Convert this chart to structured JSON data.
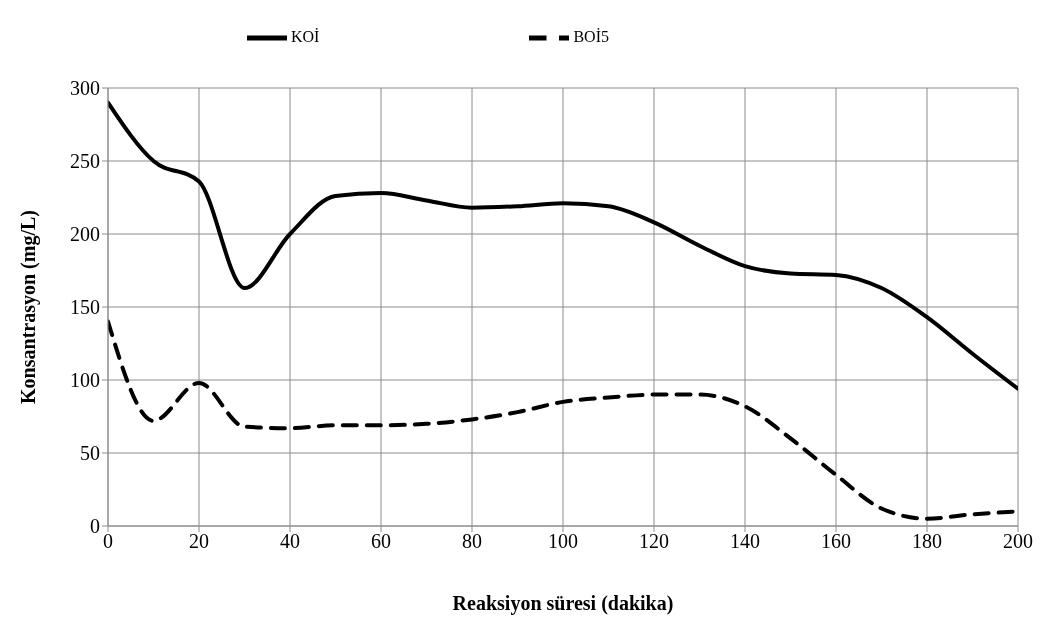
{
  "chart_data": {
    "type": "line",
    "xlabel": "Reaksiyon süresi (dakika)",
    "ylabel": "Konsantrasyon (mg/L)",
    "x": [
      0,
      10,
      20,
      30,
      40,
      50,
      60,
      70,
      80,
      90,
      100,
      110,
      120,
      130,
      140,
      150,
      160,
      170,
      180,
      190,
      200
    ],
    "series": [
      {
        "name": "KOİ",
        "color": "#000000",
        "line_style": "solid",
        "values": [
          290,
          250,
          236,
          163,
          200,
          226,
          228,
          223,
          218,
          219,
          221,
          219,
          208,
          192,
          178,
          173,
          172,
          163,
          143,
          118,
          94
        ]
      },
      {
        "name": "BOİ5",
        "color": "#000000",
        "line_style": "dashed",
        "values": [
          140,
          72,
          98,
          68,
          67,
          69,
          69,
          70,
          73,
          78,
          85,
          88,
          90,
          90,
          82,
          60,
          35,
          12,
          5,
          8,
          10
        ]
      }
    ],
    "xlim": [
      0,
      200
    ],
    "xticks": [
      0,
      20,
      40,
      60,
      80,
      100,
      120,
      140,
      160,
      180,
      200
    ],
    "ylim": [
      0,
      300
    ],
    "yticks": [
      0,
      50,
      100,
      150,
      200,
      250,
      300
    ],
    "grid": true,
    "legend": "top",
    "marker": "none"
  }
}
